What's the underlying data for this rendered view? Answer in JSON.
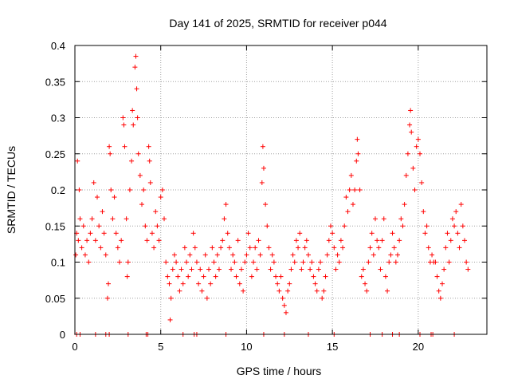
{
  "chart_data": {
    "type": "scatter",
    "title": "Day 141 of 2025, SRMTID for receiver p044",
    "xlabel": "GPS time / hours",
    "ylabel": "SRMTID / TECUs",
    "xlim": [
      0,
      24
    ],
    "ylim": [
      0,
      0.4
    ],
    "xticks": [
      0,
      5,
      10,
      15,
      20
    ],
    "xtick_labels": [
      "0",
      "5",
      "10",
      "15",
      "20"
    ],
    "yticks": [
      0,
      0.05,
      0.1,
      0.15,
      0.2,
      0.25,
      0.3,
      0.35,
      0.4
    ],
    "ytick_labels": [
      "0",
      "0.05",
      "0.1",
      "0.15",
      "0.2",
      "0.25",
      "0.3",
      "0.35",
      "0.4"
    ],
    "grid": true,
    "marker": "+",
    "color": "#ff0000",
    "series": [
      {
        "name": "SRMTID",
        "points": [
          [
            0.05,
            0.11
          ],
          [
            0.1,
            0.14
          ],
          [
            0.15,
            0.24
          ],
          [
            0.2,
            0.13
          ],
          [
            0.25,
            0.2
          ],
          [
            0.3,
            0.16
          ],
          [
            0.4,
            0.12
          ],
          [
            0.5,
            0.15
          ],
          [
            0.6,
            0.11
          ],
          [
            0.7,
            0.13
          ],
          [
            0.8,
            0.1
          ],
          [
            0.9,
            0.14
          ],
          [
            1.0,
            0.16
          ],
          [
            1.1,
            0.21
          ],
          [
            1.2,
            0.13
          ],
          [
            1.3,
            0.19
          ],
          [
            1.4,
            0.15
          ],
          [
            1.5,
            0.12
          ],
          [
            1.6,
            0.17
          ],
          [
            1.7,
            0.14
          ],
          [
            1.8,
            0.11
          ],
          [
            1.9,
            0.05
          ],
          [
            1.95,
            0.07
          ],
          [
            2.0,
            0.26
          ],
          [
            2.05,
            0.25
          ],
          [
            2.1,
            0.2
          ],
          [
            2.2,
            0.16
          ],
          [
            2.3,
            0.19
          ],
          [
            2.4,
            0.14
          ],
          [
            2.5,
            0.12
          ],
          [
            2.6,
            0.1
          ],
          [
            2.7,
            0.13
          ],
          [
            2.8,
            0.3
          ],
          [
            2.85,
            0.29
          ],
          [
            2.9,
            0.26
          ],
          [
            3.0,
            0.16
          ],
          [
            3.05,
            0.08
          ],
          [
            3.1,
            0.1
          ],
          [
            3.2,
            0.2
          ],
          [
            3.3,
            0.24
          ],
          [
            3.35,
            0.31
          ],
          [
            3.4,
            0.29
          ],
          [
            3.5,
            0.37
          ],
          [
            3.55,
            0.385
          ],
          [
            3.6,
            0.34
          ],
          [
            3.65,
            0.3
          ],
          [
            3.7,
            0.25
          ],
          [
            3.8,
            0.22
          ],
          [
            3.9,
            0.18
          ],
          [
            4.0,
            0.2
          ],
          [
            4.1,
            0.15
          ],
          [
            4.2,
            0.13
          ],
          [
            4.3,
            0.26
          ],
          [
            4.35,
            0.24
          ],
          [
            4.4,
            0.21
          ],
          [
            4.5,
            0.14
          ],
          [
            4.6,
            0.12
          ],
          [
            4.7,
            0.17
          ],
          [
            4.8,
            0.15
          ],
          [
            4.9,
            0.13
          ],
          [
            5.0,
            0.19
          ],
          [
            5.1,
            0.2
          ],
          [
            5.2,
            0.16
          ],
          [
            5.3,
            0.1
          ],
          [
            5.4,
            0.08
          ],
          [
            5.5,
            0.07
          ],
          [
            5.55,
            0.02
          ],
          [
            5.6,
            0.05
          ],
          [
            5.7,
            0.09
          ],
          [
            5.8,
            0.11
          ],
          [
            5.9,
            0.1
          ],
          [
            6.0,
            0.08
          ],
          [
            6.1,
            0.06
          ],
          [
            6.2,
            0.09
          ],
          [
            6.3,
            0.07
          ],
          [
            6.4,
            0.12
          ],
          [
            6.5,
            0.1
          ],
          [
            6.6,
            0.08
          ],
          [
            6.7,
            0.11
          ],
          [
            6.8,
            0.09
          ],
          [
            6.9,
            0.14
          ],
          [
            7.0,
            0.12
          ],
          [
            7.1,
            0.1
          ],
          [
            7.2,
            0.07
          ],
          [
            7.3,
            0.09
          ],
          [
            7.4,
            0.06
          ],
          [
            7.5,
            0.08
          ],
          [
            7.6,
            0.11
          ],
          [
            7.7,
            0.05
          ],
          [
            7.8,
            0.09
          ],
          [
            7.9,
            0.07
          ],
          [
            8.0,
            0.12
          ],
          [
            8.1,
            0.1
          ],
          [
            8.2,
            0.08
          ],
          [
            8.3,
            0.11
          ],
          [
            8.4,
            0.09
          ],
          [
            8.5,
            0.12
          ],
          [
            8.6,
            0.13
          ],
          [
            8.7,
            0.16
          ],
          [
            8.8,
            0.18
          ],
          [
            8.9,
            0.14
          ],
          [
            9.0,
            0.12
          ],
          [
            9.1,
            0.09
          ],
          [
            9.2,
            0.11
          ],
          [
            9.3,
            0.1
          ],
          [
            9.4,
            0.08
          ],
          [
            9.5,
            0.13
          ],
          [
            9.6,
            0.07
          ],
          [
            9.7,
            0.09
          ],
          [
            9.8,
            0.06
          ],
          [
            9.9,
            0.1
          ],
          [
            10.0,
            0.11
          ],
          [
            10.1,
            0.14
          ],
          [
            10.2,
            0.12
          ],
          [
            10.3,
            0.08
          ],
          [
            10.4,
            0.1
          ],
          [
            10.5,
            0.12
          ],
          [
            10.6,
            0.09
          ],
          [
            10.7,
            0.13
          ],
          [
            10.8,
            0.11
          ],
          [
            10.9,
            0.21
          ],
          [
            10.95,
            0.26
          ],
          [
            11.0,
            0.23
          ],
          [
            11.1,
            0.18
          ],
          [
            11.2,
            0.15
          ],
          [
            11.3,
            0.12
          ],
          [
            11.4,
            0.09
          ],
          [
            11.5,
            0.11
          ],
          [
            11.6,
            0.1
          ],
          [
            11.7,
            0.08
          ],
          [
            11.8,
            0.07
          ],
          [
            11.9,
            0.06
          ],
          [
            12.0,
            0.08
          ],
          [
            12.1,
            0.05
          ],
          [
            12.2,
            0.04
          ],
          [
            12.3,
            0.03
          ],
          [
            12.4,
            0.06
          ],
          [
            12.5,
            0.07
          ],
          [
            12.6,
            0.09
          ],
          [
            12.7,
            0.11
          ],
          [
            12.8,
            0.1
          ],
          [
            12.9,
            0.13
          ],
          [
            13.0,
            0.12
          ],
          [
            13.1,
            0.14
          ],
          [
            13.2,
            0.09
          ],
          [
            13.3,
            0.1
          ],
          [
            13.4,
            0.12
          ],
          [
            13.5,
            0.13
          ],
          [
            13.6,
            0.11
          ],
          [
            13.7,
            0.09
          ],
          [
            13.8,
            0.1
          ],
          [
            13.9,
            0.08
          ],
          [
            14.0,
            0.07
          ],
          [
            14.1,
            0.06
          ],
          [
            14.2,
            0.09
          ],
          [
            14.3,
            0.1
          ],
          [
            14.4,
            0.05
          ],
          [
            14.5,
            0.06
          ],
          [
            14.6,
            0.08
          ],
          [
            14.7,
            0.11
          ],
          [
            14.8,
            0.13
          ],
          [
            14.9,
            0.15
          ],
          [
            15.0,
            0.14
          ],
          [
            15.1,
            0.12
          ],
          [
            15.2,
            0.09
          ],
          [
            15.3,
            0.11
          ],
          [
            15.4,
            0.1
          ],
          [
            15.5,
            0.13
          ],
          [
            15.6,
            0.12
          ],
          [
            15.7,
            0.15
          ],
          [
            15.8,
            0.19
          ],
          [
            15.9,
            0.17
          ],
          [
            16.0,
            0.2
          ],
          [
            16.1,
            0.22
          ],
          [
            16.2,
            0.18
          ],
          [
            16.3,
            0.2
          ],
          [
            16.4,
            0.24
          ],
          [
            16.45,
            0.27
          ],
          [
            16.5,
            0.25
          ],
          [
            16.6,
            0.2
          ],
          [
            16.7,
            0.08
          ],
          [
            16.8,
            0.09
          ],
          [
            16.9,
            0.07
          ],
          [
            17.0,
            0.06
          ],
          [
            17.1,
            0.1
          ],
          [
            17.2,
            0.12
          ],
          [
            17.3,
            0.14
          ],
          [
            17.4,
            0.11
          ],
          [
            17.5,
            0.16
          ],
          [
            17.6,
            0.13
          ],
          [
            17.7,
            0.12
          ],
          [
            17.8,
            0.09
          ],
          [
            17.9,
            0.13
          ],
          [
            18.0,
            0.16
          ],
          [
            18.1,
            0.08
          ],
          [
            18.2,
            0.06
          ],
          [
            18.3,
            0.1
          ],
          [
            18.4,
            0.11
          ],
          [
            18.5,
            0.14
          ],
          [
            18.6,
            0.12
          ],
          [
            18.7,
            0.1
          ],
          [
            18.8,
            0.11
          ],
          [
            18.9,
            0.13
          ],
          [
            19.0,
            0.16
          ],
          [
            19.1,
            0.15
          ],
          [
            19.2,
            0.18
          ],
          [
            19.3,
            0.22
          ],
          [
            19.4,
            0.25
          ],
          [
            19.5,
            0.29
          ],
          [
            19.55,
            0.31
          ],
          [
            19.6,
            0.28
          ],
          [
            19.7,
            0.23
          ],
          [
            19.8,
            0.2
          ],
          [
            19.9,
            0.26
          ],
          [
            20.0,
            0.27
          ],
          [
            20.1,
            0.25
          ],
          [
            20.2,
            0.21
          ],
          [
            20.3,
            0.17
          ],
          [
            20.4,
            0.14
          ],
          [
            20.5,
            0.15
          ],
          [
            20.6,
            0.12
          ],
          [
            20.7,
            0.1
          ],
          [
            20.8,
            0.11
          ],
          [
            20.9,
            0.1
          ],
          [
            21.0,
            0.1
          ],
          [
            21.1,
            0.08
          ],
          [
            21.2,
            0.06
          ],
          [
            21.3,
            0.05
          ],
          [
            21.4,
            0.07
          ],
          [
            21.5,
            0.09
          ],
          [
            21.6,
            0.12
          ],
          [
            21.7,
            0.14
          ],
          [
            21.8,
            0.1
          ],
          [
            21.9,
            0.13
          ],
          [
            22.0,
            0.16
          ],
          [
            22.1,
            0.15
          ],
          [
            22.2,
            0.17
          ],
          [
            22.3,
            0.14
          ],
          [
            22.4,
            0.12
          ],
          [
            22.5,
            0.18
          ],
          [
            22.6,
            0.15
          ],
          [
            22.7,
            0.13
          ],
          [
            22.8,
            0.1
          ],
          [
            22.9,
            0.09
          ]
        ],
        "zero_marks_x": [
          0.1,
          0.3,
          1.2,
          1.8,
          2.0,
          3.1,
          4.15,
          4.25,
          6.3,
          6.95,
          7.1,
          8.8,
          11.0,
          12.2,
          13.6,
          15.1,
          17.2,
          17.9,
          18.5,
          18.9,
          20.1,
          20.75,
          20.85,
          22.1
        ]
      }
    ]
  }
}
